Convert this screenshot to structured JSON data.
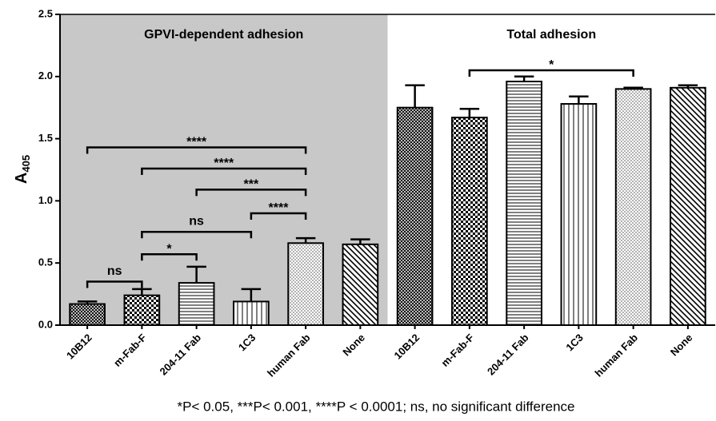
{
  "chart_data": {
    "type": "bar",
    "y_label": {
      "text": "A",
      "subscript": "405"
    },
    "categories": [
      "10B12",
      "m-Fab-F",
      "204-11 Fab",
      "1C3",
      "human Fab",
      "None",
      "10B12",
      "m-Fab-F",
      "204-11 Fab",
      "1C3",
      "human Fab",
      "None"
    ],
    "values": [
      0.17,
      0.24,
      0.34,
      0.19,
      0.66,
      0.65,
      1.75,
      1.67,
      1.96,
      1.78,
      1.9,
      1.91
    ],
    "errors": [
      0.02,
      0.05,
      0.13,
      0.1,
      0.04,
      0.04,
      0.18,
      0.07,
      0.04,
      0.06,
      0.01,
      0.02
    ],
    "patterns": [
      "crosshatch",
      "checker",
      "horizontal",
      "vertical",
      "dots",
      "diagonal",
      "crosshatch",
      "checker",
      "horizontal",
      "vertical",
      "dots",
      "diagonal"
    ],
    "color": "#000000",
    "ylim": [
      0,
      2.5
    ],
    "yticks": [
      {
        "value": 0,
        "label": "0.0"
      },
      {
        "value": 0.5,
        "label": "0.5"
      },
      {
        "value": 1,
        "label": "1.0"
      },
      {
        "value": 1.5,
        "label": "1.5"
      },
      {
        "value": 2,
        "label": "2.0"
      },
      {
        "value": 2.5,
        "label": "2.5"
      }
    ],
    "groups": [
      {
        "label": "GPVI-dependent adhesion",
        "from": 0,
        "to": 5,
        "shaded": true
      },
      {
        "label": "Total adhesion",
        "from": 6,
        "to": 11,
        "shaded": false
      }
    ],
    "brackets": [
      {
        "from": 0,
        "to": 1,
        "y": 0.35,
        "label": "ns"
      },
      {
        "from": 1,
        "to": 2,
        "y": 0.57,
        "label": "*"
      },
      {
        "from": 1,
        "to": 3,
        "y": 0.75,
        "label": "ns"
      },
      {
        "from": 3,
        "to": 4,
        "y": 0.9,
        "label": "****"
      },
      {
        "from": 2,
        "to": 4,
        "y": 1.09,
        "label": "***"
      },
      {
        "from": 1,
        "to": 4,
        "y": 1.26,
        "label": "****"
      },
      {
        "from": 0,
        "to": 4,
        "y": 1.43,
        "label": "****"
      },
      {
        "from": 7,
        "to": 10,
        "y": 2.05,
        "label": "*"
      }
    ],
    "footnote": "*P< 0.05, ***P<  0.001, ****P < 0.0001; ns, no significant difference"
  }
}
